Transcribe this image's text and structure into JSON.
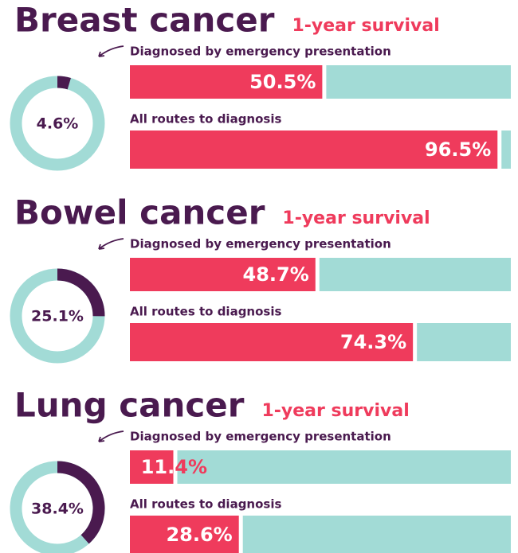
{
  "chart_data": [
    {
      "type": "bar",
      "title": "Breast cancer",
      "subtitle": "1-year survival",
      "categories": [
        "Diagnosed by emergency presentation",
        "All routes to diagnosis"
      ],
      "values": [
        50.5,
        96.5
      ],
      "value_labels": [
        "50.5%",
        "96.5%"
      ],
      "xlim": [
        0,
        100
      ],
      "donut": {
        "value": 4.6,
        "value_label": "4.6%"
      }
    },
    {
      "type": "bar",
      "title": "Bowel cancer",
      "subtitle": "1-year survival",
      "categories": [
        "Diagnosed by emergency presentation",
        "All routes to diagnosis"
      ],
      "values": [
        48.7,
        74.3
      ],
      "value_labels": [
        "48.7%",
        "74.3%"
      ],
      "xlim": [
        0,
        100
      ],
      "donut": {
        "value": 25.1,
        "value_label": "25.1%"
      }
    },
    {
      "type": "bar",
      "title": "Lung cancer",
      "subtitle": "1-year survival",
      "categories": [
        "Diagnosed by emergency presentation",
        "All routes to diagnosis"
      ],
      "values": [
        11.4,
        28.6
      ],
      "value_labels": [
        "11.4%",
        "28.6%"
      ],
      "xlim": [
        0,
        100
      ],
      "donut": {
        "value": 38.4,
        "value_label": "38.4%"
      }
    }
  ]
}
